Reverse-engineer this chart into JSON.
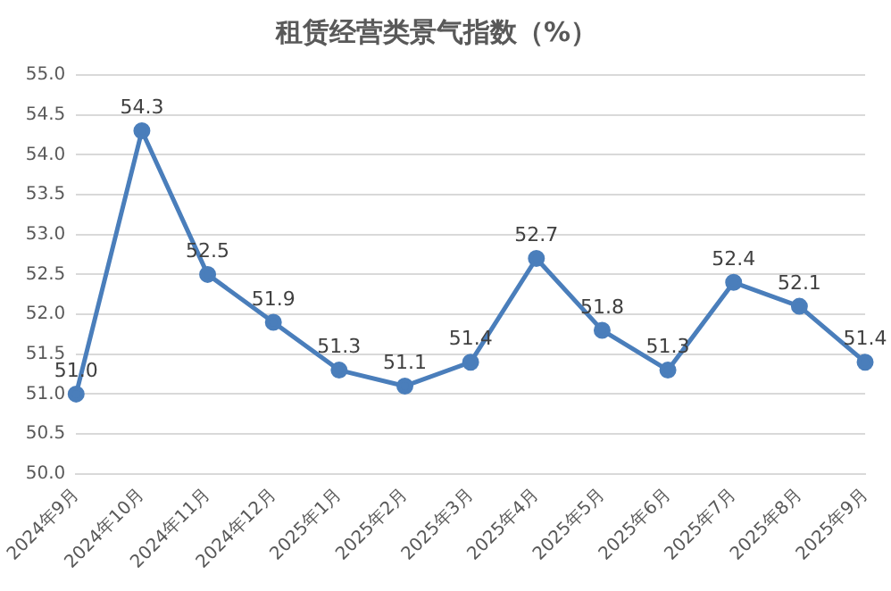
{
  "chart_data": {
    "type": "line",
    "title": "租赁经营类景气指数（%）",
    "categories": [
      "2024年9月",
      "2024年10月",
      "2024年11月",
      "2024年12月",
      "2025年1月",
      "2025年2月",
      "2025年3月",
      "2025年4月",
      "2025年5月",
      "2025年6月",
      "2025年7月",
      "2025年8月",
      "2025年9月"
    ],
    "series": [
      {
        "color": "#4a7ebb",
        "values": [
          51.0,
          54.3,
          52.5,
          51.9,
          51.3,
          51.1,
          51.4,
          52.7,
          51.8,
          51.3,
          52.4,
          52.1,
          51.4
        ],
        "value_labels": [
          "51.0",
          "54.3",
          "52.5",
          "51.9",
          "51.3",
          "51.1",
          "51.4",
          "52.7",
          "51.8",
          "51.3",
          "52.4",
          "52.1",
          "51.4"
        ]
      }
    ],
    "ylim": [
      50,
      55
    ],
    "yticks": [
      {
        "value": 50,
        "label": "50.0"
      },
      {
        "value": 50.5,
        "label": "50.5"
      },
      {
        "value": 51,
        "label": "51.0"
      },
      {
        "value": 51.5,
        "label": "51.5"
      },
      {
        "value": 52,
        "label": "52.0"
      },
      {
        "value": 52.5,
        "label": "52.5"
      },
      {
        "value": 53,
        "label": "53.0"
      },
      {
        "value": 53.5,
        "label": "53.5"
      },
      {
        "value": 54,
        "label": "54.0"
      },
      {
        "value": 54.5,
        "label": "54.5"
      },
      {
        "value": 55,
        "label": "55.0"
      }
    ],
    "grid": "y",
    "legend": false,
    "marker": "circle",
    "line_style": "solid"
  }
}
